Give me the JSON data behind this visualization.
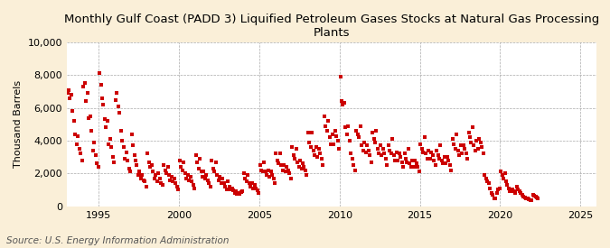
{
  "title": "Monthly Gulf Coast (PADD 3) Liquified Petroleum Gases Stocks at Natural Gas Processing\nPlants",
  "ylabel": "Thousand Barrels",
  "source": "Source: U.S. Energy Information Administration",
  "background_color": "#faefd8",
  "plot_bg_color": "#ffffff",
  "marker_color": "#cc0000",
  "marker": "s",
  "marker_size": 3.5,
  "ylim": [
    0,
    10000
  ],
  "yticks": [
    0,
    2000,
    4000,
    6000,
    8000,
    10000
  ],
  "ytick_labels": [
    "0",
    "2,000",
    "4,000",
    "6,000",
    "8,000",
    "10,000"
  ],
  "xticks": [
    1995,
    2000,
    2005,
    2010,
    2015,
    2020,
    2025
  ],
  "grid_color": "#aaaaaa",
  "grid_linestyle": "--",
  "title_fontsize": 9.5,
  "label_fontsize": 8,
  "tick_fontsize": 8,
  "source_fontsize": 7.5,
  "values": [
    6900,
    7100,
    6600,
    6800,
    5800,
    5200,
    4400,
    3800,
    4300,
    3500,
    3200,
    2800,
    7300,
    7500,
    6400,
    6900,
    5400,
    5500,
    4600,
    3400,
    3900,
    3100,
    2600,
    2400,
    8100,
    7400,
    6600,
    6200,
    5300,
    4800,
    5200,
    3800,
    4100,
    3600,
    3000,
    2700,
    6500,
    6900,
    6100,
    5700,
    4600,
    4000,
    3600,
    2900,
    3300,
    2800,
    2300,
    2100,
    4400,
    3700,
    3100,
    2800,
    2500,
    1900,
    2100,
    1700,
    1900,
    1600,
    1500,
    1200,
    3200,
    2700,
    2400,
    2500,
    2100,
    1700,
    1900,
    1500,
    2000,
    1700,
    1400,
    1300,
    2500,
    2200,
    2000,
    2400,
    1900,
    1600,
    1800,
    1500,
    1700,
    1400,
    1200,
    1000,
    2800,
    2400,
    2200,
    2700,
    2000,
    1700,
    1900,
    1600,
    1800,
    1500,
    1300,
    1100,
    3100,
    2700,
    2300,
    2900,
    2100,
    1800,
    2100,
    1700,
    1900,
    1600,
    1400,
    1200,
    2800,
    2300,
    2100,
    2700,
    1900,
    1600,
    1800,
    1400,
    1700,
    1400,
    1200,
    1000,
    1500,
    1200,
    1000,
    1100,
    950,
    800,
    900,
    750,
    800,
    750,
    850,
    900,
    2000,
    1700,
    1500,
    1900,
    1400,
    1200,
    1400,
    1100,
    1300,
    1100,
    950,
    800,
    2500,
    2200,
    2100,
    2700,
    2100,
    1900,
    2200,
    1800,
    2100,
    1900,
    1700,
    1400,
    3200,
    2800,
    2600,
    3200,
    2500,
    2200,
    2500,
    2100,
    2400,
    2200,
    2000,
    1700,
    3600,
    3100,
    2900,
    3500,
    2700,
    2400,
    2800,
    2300,
    2600,
    2400,
    2200,
    1900,
    4500,
    3900,
    3600,
    4500,
    3400,
    3100,
    3600,
    3000,
    3500,
    3200,
    2900,
    2500,
    5500,
    4900,
    4600,
    5200,
    4200,
    3800,
    4400,
    3800,
    4600,
    4300,
    4000,
    3500,
    7900,
    6400,
    6200,
    6300,
    4800,
    4400,
    4900,
    4000,
    3200,
    2900,
    2500,
    2200,
    4600,
    4400,
    4200,
    4900,
    3700,
    3400,
    3900,
    3300,
    3700,
    3400,
    3100,
    2700,
    4500,
    4100,
    3900,
    4600,
    3500,
    3200,
    3700,
    3100,
    3500,
    3200,
    2900,
    2500,
    3700,
    3400,
    3200,
    4100,
    3100,
    2800,
    3300,
    2800,
    3200,
    3000,
    2700,
    2400,
    3200,
    2900,
    2700,
    3500,
    2600,
    2400,
    2800,
    2400,
    2800,
    2600,
    2400,
    2100,
    3800,
    3500,
    3300,
    4200,
    3200,
    2900,
    3400,
    2900,
    3300,
    3100,
    2800,
    2500,
    3400,
    3100,
    2900,
    3700,
    2800,
    2600,
    3000,
    2600,
    3000,
    2800,
    2500,
    2200,
    4100,
    3800,
    3500,
    4400,
    3400,
    3100,
    3700,
    3200,
    3700,
    3500,
    3200,
    2900,
    4500,
    4200,
    3900,
    4800,
    3700,
    3400,
    4000,
    3500,
    4100,
    3900,
    3600,
    3200,
    1900,
    1700,
    1500,
    1400,
    1100,
    800,
    700,
    500,
    500,
    800,
    1000,
    1100,
    2100,
    1900,
    1700,
    2000,
    1500,
    1300,
    1100,
    900,
    900,
    1000,
    900,
    800,
    1200,
    1000,
    900,
    800,
    700,
    600,
    550,
    500,
    450,
    400,
    380,
    350,
    700,
    620,
    580,
    540,
    500
  ],
  "start_year": 1993,
  "start_month": 1
}
